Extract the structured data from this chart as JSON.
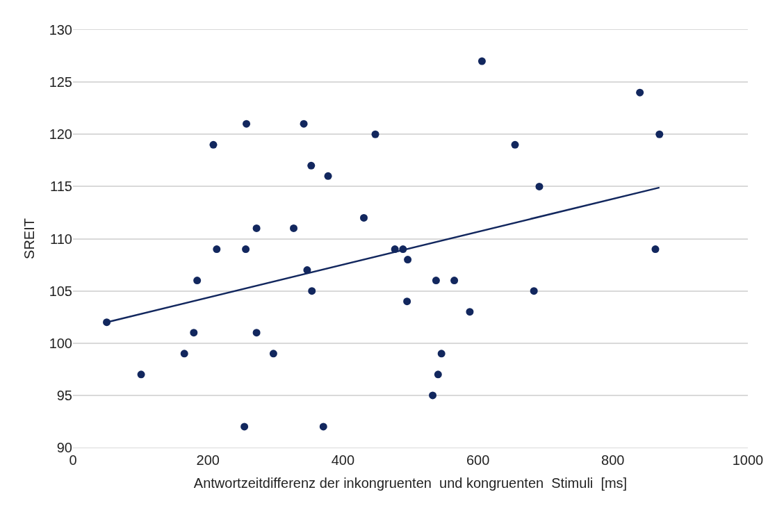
{
  "chart_data": {
    "type": "scatter",
    "xlabel": "Antwortzeitdifferenz der inkongruenten  und kongruenten  Stimuli  [ms]",
    "ylabel": "SREIT",
    "xlim": [
      0,
      1000
    ],
    "xticks": [
      0,
      200,
      400,
      600,
      800,
      1000
    ],
    "ylim": [
      90,
      130
    ],
    "yticks": [
      90,
      95,
      100,
      105,
      110,
      115,
      120,
      125,
      130
    ],
    "grid": "y",
    "marker": "circle",
    "series": [
      {
        "color": "#12275e",
        "x": [
          50,
          101,
          165,
          179,
          184,
          208,
          213,
          254,
          257,
          256,
          272,
          272,
          297,
          327,
          342,
          347,
          353,
          354,
          371,
          378,
          431,
          448,
          477,
          489,
          496,
          495,
          533,
          538,
          541,
          546,
          565,
          588,
          606,
          655,
          683,
          691,
          840,
          863,
          869
        ],
        "values": [
          102,
          97,
          99,
          101,
          106,
          119,
          109,
          92,
          121,
          109,
          111,
          101,
          99,
          111,
          121,
          107,
          117,
          105,
          92,
          116,
          112,
          120,
          109,
          109,
          108,
          104,
          95,
          106,
          97,
          99,
          106,
          103,
          127,
          119,
          105,
          115,
          124,
          109,
          120
        ]
      },
      {
        "type": "line",
        "color": "#12275e",
        "line_style": "solid",
        "marker": "none",
        "x": [
          50,
          869
        ],
        "values": [
          102,
          114.9
        ]
      }
    ]
  }
}
